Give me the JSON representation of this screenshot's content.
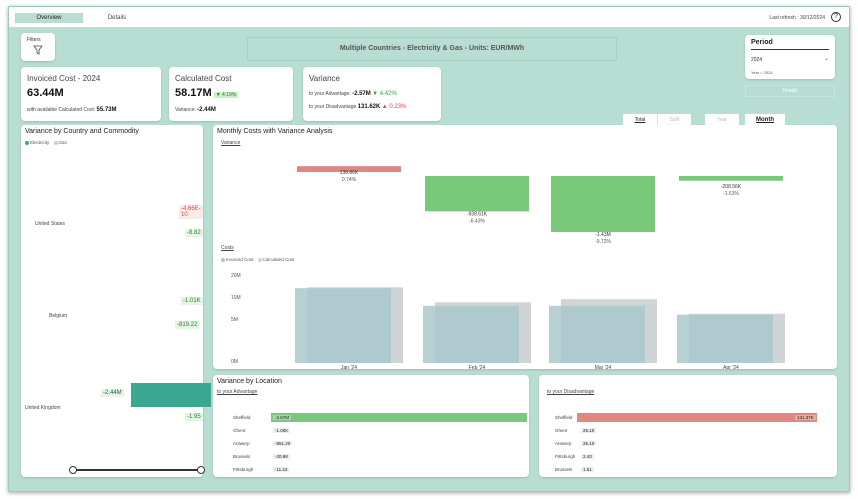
{
  "tabs": {
    "overview": "Overview",
    "details": "Details"
  },
  "last_refresh": "Last refresh : 30/12/2024",
  "filters_label": "Filters",
  "banner_title": "Multiple Countries - Electricity & Gas - Units: EUR/MWh",
  "period": {
    "label": "Period",
    "value": "2024",
    "sub": "Year = 2024"
  },
  "details_button": "Details",
  "kpi_invoiced": {
    "title": "Invoiced Cost - 2024",
    "value": "63.44M",
    "sub_label": "with available Calculated Cost:",
    "sub_value": "55.73M"
  },
  "kpi_calculated": {
    "title": "Calculated Cost",
    "value": "58.17M",
    "pct": "▼ 4.19%",
    "variance_label": "Variance:",
    "variance_value": "-2.44M"
  },
  "kpi_variance": {
    "title": "Variance",
    "adv_label": "to your Advantage:",
    "adv_value": "-2.57M",
    "adv_pct": "▼ 4.42%",
    "dis_label": "to your Disadvantage",
    "dis_value": "131.62K",
    "dis_pct": "▲ 0.23%"
  },
  "view_tabs": {
    "total": "Total",
    "split": "Split",
    "year": "Year",
    "month": "Month"
  },
  "country_panel": {
    "title": "Variance by Country and Commodity",
    "legend": [
      "Electricity",
      "Gas"
    ],
    "countries": [
      {
        "name": "United States",
        "electricity": "-4.66E-10",
        "gas": "-8.82"
      },
      {
        "name": "Belgium",
        "electricity": "-1.01K",
        "gas": "-819.22"
      },
      {
        "name": "United Kingdom",
        "electricity": "-2.44M",
        "gas": "-1.95"
      }
    ]
  },
  "monthly_panel": {
    "title": "Monthly Costs with Variance Analysis",
    "variance_label": "Variance",
    "costs_label": "Costs",
    "legend": [
      "Invoiced Cost",
      "Calculated Cost"
    ],
    "y_ticks": [
      "20M",
      "10M",
      "5M",
      "0M"
    ]
  },
  "chart_data": [
    {
      "type": "bar",
      "categories": [
        "Jan '24",
        "Feb '24",
        "Mar '24",
        "Apr '24"
      ],
      "series": [
        {
          "name": "Variance",
          "values": [
            138860,
            -938610,
            -1430000,
            -208560
          ],
          "labels": [
            "138.86K",
            "-938.61K",
            "-1.43M",
            "-208.56K"
          ],
          "pcts": [
            "0.74%",
            "-6.43%",
            "-9.72%",
            "-1.63%"
          ]
        }
      ]
    },
    {
      "type": "bar",
      "categories": [
        "Jan '24",
        "Feb '24",
        "Mar '24",
        "Apr '24"
      ],
      "series": [
        {
          "name": "Invoiced Cost",
          "values": [
            17.0,
            13.0,
            13.0,
            11.0
          ]
        },
        {
          "name": "Calculated Cost",
          "values": [
            17.2,
            13.8,
            14.5,
            11.2
          ]
        }
      ],
      "ylim": [
        0,
        20
      ]
    }
  ],
  "location_adv": {
    "title": "Variance by Location",
    "subtitle": "to your Advantage",
    "rows": [
      {
        "name": "Sheffield",
        "value": "-2.57M",
        "num": -2570000
      },
      {
        "name": "Ghent",
        "value": "-1.00K",
        "num": -1000
      },
      {
        "name": "Antwerp",
        "value": "-851.20",
        "num": -851.2
      },
      {
        "name": "Brussels",
        "value": "-30.98",
        "num": -30.98
      },
      {
        "name": "Pittsburgh",
        "value": "-11.24",
        "num": -11.24
      }
    ]
  },
  "location_dis": {
    "subtitle": "to your Disadvantage",
    "rows": [
      {
        "name": "Sheffield",
        "value": "131.37K",
        "num": 131370
      },
      {
        "name": "Ghent",
        "value": "25.10",
        "num": 25.1
      },
      {
        "name": "Antwerp",
        "value": "25.10",
        "num": 25.1
      },
      {
        "name": "Pittsburgh",
        "value": "2.43",
        "num": 2.43
      },
      {
        "name": "Brussels",
        "value": "1.51",
        "num": 1.51
      }
    ]
  },
  "colors": {
    "accent": "#b8ddd2",
    "green": "#7ac97a",
    "red": "#df8880",
    "teal": "#3aa891",
    "invoiced": "#a9c8cc",
    "calculated": "#cfd4d6"
  }
}
